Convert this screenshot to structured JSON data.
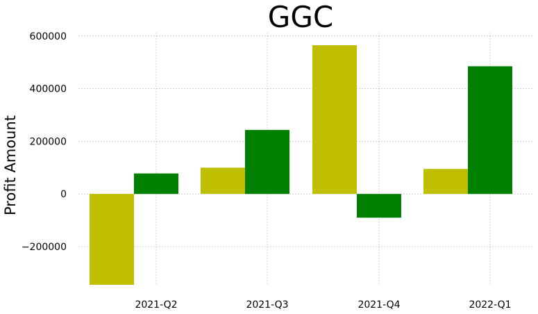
{
  "chart_data": {
    "type": "bar",
    "title": "GGC",
    "xlabel": "",
    "ylabel": "Profit Amount",
    "categories": [
      "2021-Q2",
      "2021-Q3",
      "2021-Q4",
      "2022-Q1"
    ],
    "series": [
      {
        "color": "#bfbf00",
        "values": [
          -345000,
          100000,
          565000,
          95000
        ]
      },
      {
        "color": "#008000",
        "values": [
          78000,
          243000,
          -90000,
          485000
        ]
      }
    ],
    "ylim": [
      -345000,
      610000
    ],
    "yticks": [
      -200000,
      0,
      200000,
      400000,
      600000
    ],
    "ytick_labels": [
      "−200000",
      "0",
      "200000",
      "400000",
      "600000"
    ],
    "grid": true,
    "legend": "none"
  }
}
